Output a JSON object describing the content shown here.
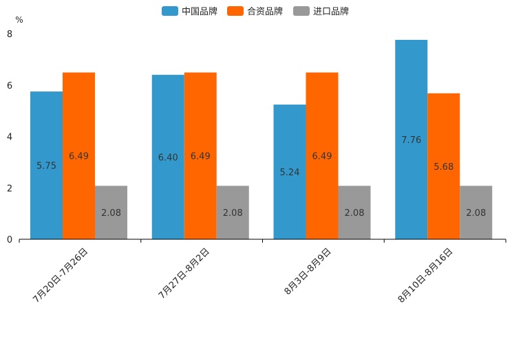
{
  "chart_data": {
    "type": "bar",
    "unit": "%",
    "categories": [
      "7月20日-7月26日",
      "7月27日-8月2日",
      "8月3日-8月9日",
      "8月10日-8月16日"
    ],
    "series": [
      {
        "name": "中国品牌",
        "color": "#3399cc",
        "values": [
          5.75,
          6.4,
          5.24,
          7.76
        ],
        "labels": [
          "5.75",
          "6.40",
          "5.24",
          "7.76"
        ]
      },
      {
        "name": "合资品牌",
        "color": "#ff6600",
        "values": [
          6.49,
          6.49,
          6.49,
          5.68
        ],
        "labels": [
          "6.49",
          "6.49",
          "6.49",
          "5.68"
        ]
      },
      {
        "name": "进口品牌",
        "color": "#999999",
        "values": [
          2.08,
          2.08,
          2.08,
          2.08
        ],
        "labels": [
          "2.08",
          "2.08",
          "2.08",
          "2.08"
        ]
      }
    ],
    "yticks": [
      0,
      2,
      4,
      6,
      8
    ],
    "ylim": [
      0,
      8.2
    ],
    "legend_position": "top-center",
    "grid": false
  }
}
